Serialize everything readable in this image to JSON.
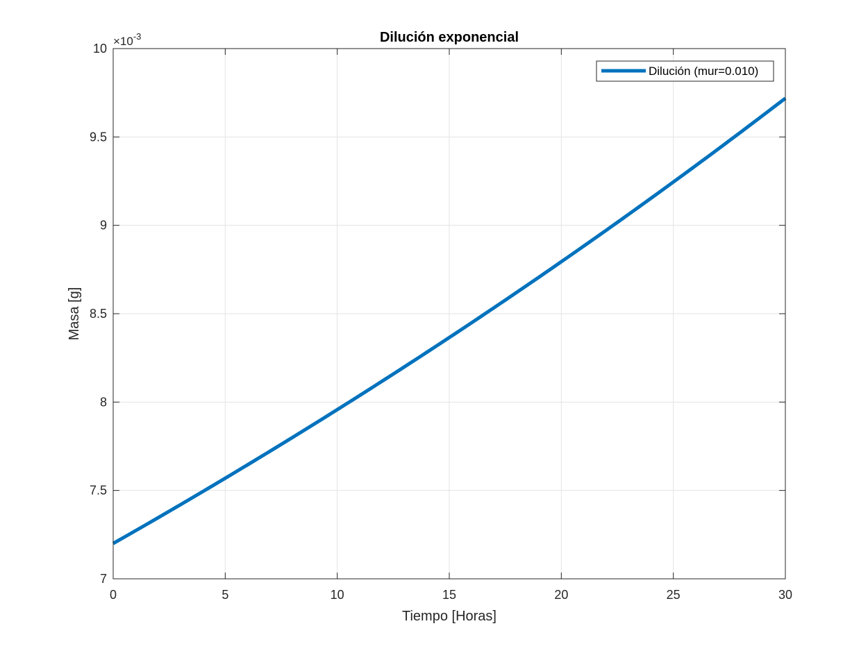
{
  "chart_data": {
    "type": "line",
    "title": "Dilución exponencial",
    "xlabel": "Tiempo [Horas]",
    "ylabel": "Masa [g]",
    "y_exponent_prefix": "×10",
    "y_exponent_power": "-3",
    "xlim": [
      0,
      30
    ],
    "ylim": [
      7,
      10
    ],
    "xticks": [
      0,
      5,
      10,
      15,
      20,
      25,
      30
    ],
    "yticks": [
      7,
      7.5,
      8,
      8.5,
      9,
      9.5,
      10
    ],
    "grid": true,
    "legend_position": "top-right",
    "series": [
      {
        "name": "Dilución (mur=0.010)",
        "color": "#0072BD",
        "model": "exponential",
        "y0": 7.2,
        "rate": 0.01,
        "x": [
          0,
          5,
          10,
          15,
          20,
          25,
          30
        ],
        "values": [
          7.2,
          7.569,
          7.957,
          8.365,
          8.794,
          9.245,
          9.719
        ]
      }
    ]
  }
}
